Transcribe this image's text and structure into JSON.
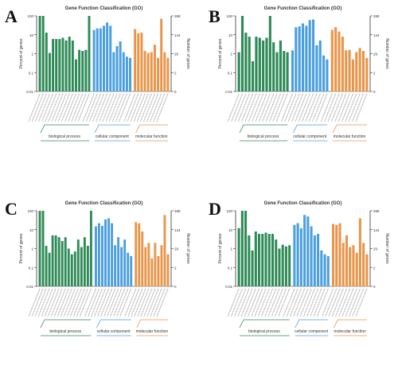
{
  "figure": {
    "panel_letters": [
      "A",
      "B",
      "C",
      "D"
    ]
  },
  "colors": {
    "biological_process": "#2e8b57",
    "cellular_component": "#4a9fe0",
    "molecular_function": "#e8954a",
    "axis": "#333333"
  },
  "chart_data": [
    {
      "type": "bar",
      "title": "Gene Function Classification (GO)",
      "ylabel": "Percent of genes",
      "ylabel_right": "Number of genes",
      "y_scale": "log",
      "ylim": [
        0.01,
        100
      ],
      "left_ticks": [
        "100",
        "10",
        "1",
        "0.1",
        "0.01"
      ],
      "right_ticks": [
        "288",
        "144",
        "29",
        "2",
        "0"
      ],
      "groups": [
        {
          "name": "biological process",
          "color": "#2e8b57",
          "values": [
            100,
            100,
            13,
            1.1,
            6,
            6,
            6,
            7,
            5,
            8,
            5,
            0.5,
            1.6,
            1.4,
            1.6,
            100
          ]
        },
        {
          "name": "cellular component",
          "color": "#4a9fe0",
          "values": [
            18,
            22,
            22,
            30,
            45,
            30,
            1.2,
            2.5,
            4.5,
            1.2,
            0.7,
            0.6
          ]
        },
        {
          "name": "molecular function",
          "color": "#e8954a",
          "values": [
            20,
            12,
            13,
            1.4,
            1.1,
            1.2,
            3,
            0.6,
            70,
            1.2,
            0.6
          ]
        }
      ]
    },
    {
      "type": "bar",
      "title": "Gene Function Classification (GO)",
      "ylabel": "Percent of genes",
      "ylabel_right": "Number of genes",
      "y_scale": "log",
      "ylim": [
        0.01,
        100
      ],
      "left_ticks": [
        "100",
        "10",
        "1",
        "0.1",
        "0.01"
      ],
      "right_ticks": [
        "288",
        "144",
        "29",
        "2",
        "0"
      ],
      "groups": [
        {
          "name": "biological process",
          "color": "#2e8b57",
          "values": [
            1.2,
            100,
            13,
            8,
            0.4,
            8,
            7,
            5,
            7,
            100,
            4,
            1.2,
            5,
            1.4,
            1.2
          ]
        },
        {
          "name": "cellular component",
          "color": "#4a9fe0",
          "values": [
            1.5,
            25,
            28,
            40,
            30,
            60,
            65,
            2.8,
            5,
            0.8,
            0.5
          ]
        },
        {
          "name": "molecular function",
          "color": "#e8954a",
          "values": [
            18,
            25,
            15,
            8,
            1.5,
            1.6,
            0.5,
            1.2,
            2,
            1.4,
            0.6
          ]
        }
      ]
    },
    {
      "type": "bar",
      "title": "Gene Function Classification (GO)",
      "ylabel": "Percent of genes",
      "ylabel_right": "Number of genes",
      "y_scale": "log",
      "ylim": [
        0.01,
        100
      ],
      "left_ticks": [
        "100",
        "10",
        "1",
        "0.1",
        "0.01"
      ],
      "right_ticks": [
        "288",
        "144",
        "29",
        "2",
        "0"
      ],
      "groups": [
        {
          "name": "biological process",
          "color": "#2e8b57",
          "values": [
            100,
            100,
            1.4,
            0.6,
            5,
            5,
            4,
            2.5,
            4,
            1,
            0.5,
            0.7,
            3,
            1.2,
            4,
            1.4,
            100
          ]
        },
        {
          "name": "cellular component",
          "color": "#4a9fe0",
          "values": [
            15,
            22,
            16,
            35,
            40,
            22,
            1.5,
            4,
            1.2,
            3,
            0.6,
            0.4
          ]
        },
        {
          "name": "molecular function",
          "color": "#e8954a",
          "values": [
            25,
            22,
            8,
            1.2,
            2,
            0.3,
            2,
            0.4,
            1.5,
            60,
            0.5
          ]
        }
      ]
    },
    {
      "type": "bar",
      "title": "Gene Function Classification (GO)",
      "ylabel": "Percent of genes",
      "ylabel_right": "Number of genes",
      "y_scale": "log",
      "ylim": [
        0.01,
        100
      ],
      "left_ticks": [
        "100",
        "10",
        "1",
        "0.1",
        "0.01"
      ],
      "right_ticks": [
        "288",
        "144",
        "29",
        "2",
        "0"
      ],
      "groups": [
        {
          "name": "biological process",
          "color": "#2e8b57",
          "values": [
            12,
            100,
            100,
            5,
            0.8,
            8,
            6,
            6,
            7,
            6,
            6,
            3,
            1,
            1.6,
            1.3,
            1.5
          ]
        },
        {
          "name": "cellular component",
          "color": "#4a9fe0",
          "values": [
            18,
            22,
            12,
            60,
            50,
            15,
            5,
            6,
            0.8,
            0.5,
            0.4
          ]
        },
        {
          "name": "molecular function",
          "color": "#e8954a",
          "values": [
            20,
            18,
            22,
            2,
            5,
            1.2,
            1.5,
            0.6,
            40,
            2,
            0.5
          ]
        }
      ]
    }
  ]
}
